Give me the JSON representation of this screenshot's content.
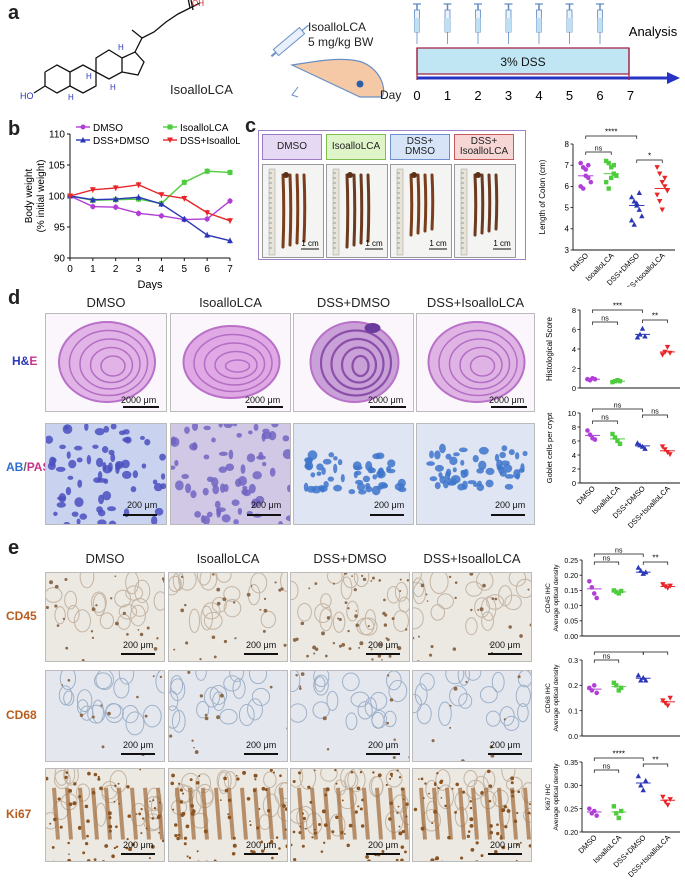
{
  "panels": {
    "a": "a",
    "b": "b",
    "c": "c",
    "d": "d",
    "e": "e"
  },
  "panel_a": {
    "compound": "IsoalloLCA",
    "dose_line1": "IsoalloLCA",
    "dose_line2": "5 mg/kg BW",
    "day_label": "Day",
    "dss_label": "3% DSS",
    "analysis": "Analysis",
    "days": [
      "0",
      "1",
      "2",
      "3",
      "4",
      "5",
      "6",
      "7"
    ],
    "chem_labels": {
      "oh": "OH",
      "o": "O",
      "ho": "HO",
      "h": "H"
    }
  },
  "legend_groups": [
    "DMSO",
    "IsoalloLCA",
    "DSS+DMSO",
    "DSS+IsoalloLCA"
  ],
  "colors": {
    "DMSO": "#b23ed8",
    "IsoalloLCA": "#4fcc3d",
    "DSS+DMSO": "#2b37b8",
    "DSS+IsoalloLCA": "#e8262a"
  },
  "chart_data": [
    {
      "type": "line",
      "id": "body-weight",
      "xlabel": "Days",
      "ylabel": "Body weight\n(% initial weight)",
      "ylabel_lines": [
        "Body weight",
        "(% initial weight)"
      ],
      "x": [
        0,
        1,
        2,
        3,
        4,
        5,
        6,
        7
      ],
      "xticks": [
        "0",
        "1",
        "2",
        "3",
        "4",
        "5",
        "6",
        "7"
      ],
      "yticks": [
        "90",
        "95",
        "100",
        "105",
        "110"
      ],
      "ylim": [
        90,
        110
      ],
      "legend_placement": "top",
      "series": [
        {
          "name": "DMSO",
          "values": [
            100,
            98.3,
            98.2,
            97.2,
            96.8,
            96.2,
            96.3,
            99.2
          ]
        },
        {
          "name": "IsoalloLCA",
          "values": [
            100,
            99.3,
            99.4,
            99.5,
            98.8,
            102.2,
            104,
            103.8
          ]
        },
        {
          "name": "DSS+DMSO",
          "values": [
            100,
            99.4,
            99.5,
            99.8,
            98.7,
            96.3,
            93.7,
            92.8
          ]
        },
        {
          "name": "DSS+IsoalloLCA",
          "values": [
            100,
            101,
            101.3,
            101.8,
            100.2,
            99.6,
            97.3,
            96
          ]
        }
      ]
    },
    {
      "type": "scatter",
      "id": "colon-length",
      "ylabel": "Length of Colon (cm)",
      "yticks": [
        "3",
        "4",
        "5",
        "6",
        "7",
        "8"
      ],
      "ylim": [
        3,
        8
      ],
      "categories": [
        "DMSO",
        "IsoalloLCA",
        "DSS+DMSO",
        "DSS+IsoalloLCA"
      ],
      "means": [
        6.5,
        6.6,
        5.1,
        5.9
      ],
      "points": [
        [
          7.1,
          6.9,
          6.5,
          6.4,
          6.2,
          6.0,
          5.9,
          6.8,
          7.0
        ],
        [
          7.2,
          7.1,
          6.9,
          6.6,
          6.5,
          6.2,
          5.9,
          6.4,
          7.0
        ],
        [
          5.5,
          5.3,
          5.1,
          4.9,
          4.6,
          4.4,
          4.2,
          5.2,
          5.7
        ],
        [
          6.9,
          6.6,
          6.2,
          6.0,
          5.8,
          5.6,
          5.3,
          4.9,
          6.4
        ]
      ],
      "sig": [
        {
          "a": 0,
          "b": 1,
          "text": "ns"
        },
        {
          "a": 0,
          "b": 2,
          "text": "****"
        },
        {
          "a": 2,
          "b": 3,
          "text": "*"
        }
      ]
    },
    {
      "type": "scatter",
      "id": "histological-score",
      "ylabel": "Histological Score",
      "yticks": [
        "0",
        "2",
        "4",
        "6",
        "8"
      ],
      "ylim": [
        0,
        8
      ],
      "categories": [
        "DMSO",
        "IsoalloLCA",
        "DSS+DMSO",
        "DSS+IsoalloLCA"
      ],
      "means": [
        0.9,
        0.7,
        5.5,
        3.7
      ],
      "points": [
        [
          0.9,
          0.8,
          1.0,
          0.9
        ],
        [
          0.6,
          0.7,
          0.8,
          0.7
        ],
        [
          5.2,
          5.5,
          6.1,
          5.3
        ],
        [
          3.4,
          3.7,
          4.2,
          3.6
        ]
      ],
      "sig": [
        {
          "a": 0,
          "b": 1,
          "text": "ns"
        },
        {
          "a": 0,
          "b": 2,
          "text": "***"
        },
        {
          "a": 2,
          "b": 3,
          "text": "**"
        }
      ]
    },
    {
      "type": "scatter",
      "id": "goblet-cells",
      "ylabel": "Goblet cells per crypt",
      "yticks": [
        "0",
        "2",
        "4",
        "6",
        "8",
        "10"
      ],
      "ylim": [
        0,
        10
      ],
      "categories": [
        "DMSO",
        "IsoalloLCA",
        "DSS+DMSO",
        "DSS+IsoalloLCA"
      ],
      "means": [
        6.8,
        6.3,
        5.3,
        4.6
      ],
      "points": [
        [
          7.5,
          6.9,
          6.4,
          6.2
        ],
        [
          7.0,
          6.5,
          6.0,
          5.6
        ],
        [
          5.7,
          5.4,
          5.2,
          4.9
        ],
        [
          5.2,
          4.8,
          4.4,
          4.1
        ]
      ],
      "sig": [
        {
          "a": 0,
          "b": 1,
          "text": "ns"
        },
        {
          "a": 0,
          "b": 2,
          "text": "ns"
        },
        {
          "a": 2,
          "b": 3,
          "text": "ns"
        }
      ]
    },
    {
      "type": "scatter",
      "id": "cd45-ihc",
      "ylabel": "CD45 IHC",
      "ylabel2": "Average optical density",
      "yticks": [
        "0.00",
        "0.05",
        "0.10",
        "0.15",
        "0.20",
        "0.25"
      ],
      "ylim": [
        0,
        0.25
      ],
      "categories": [
        "DMSO",
        "IsoalloLCA",
        "DSS+DMSO",
        "DSS+IsoalloLCA"
      ],
      "means": [
        0.155,
        0.145,
        0.21,
        0.163
      ],
      "points": [
        [
          0.18,
          0.16,
          0.14,
          0.125
        ],
        [
          0.15,
          0.145,
          0.14,
          0.148
        ],
        [
          0.225,
          0.215,
          0.205,
          0.21
        ],
        [
          0.17,
          0.163,
          0.158,
          0.165
        ]
      ],
      "sig": [
        {
          "a": 0,
          "b": 1,
          "text": "ns"
        },
        {
          "a": 0,
          "b": 2,
          "text": "ns"
        },
        {
          "a": 2,
          "b": 3,
          "text": "**"
        }
      ]
    },
    {
      "type": "scatter",
      "id": "cd68-ihc",
      "ylabel": "CD68 IHC",
      "ylabel2": "Average optical density",
      "yticks": [
        "0.0",
        "0.1",
        "0.2",
        "0.3"
      ],
      "ylim": [
        0,
        0.3
      ],
      "categories": [
        "DMSO",
        "IsoalloLCA",
        "DSS+DMSO",
        "DSS+IsoalloLCA"
      ],
      "means": [
        0.185,
        0.195,
        0.228,
        0.135
      ],
      "points": [
        [
          0.19,
          0.18,
          0.2,
          0.17
        ],
        [
          0.21,
          0.2,
          0.18,
          0.19
        ],
        [
          0.24,
          0.22,
          0.23,
          0.22
        ],
        [
          0.14,
          0.13,
          0.12,
          0.15
        ]
      ],
      "sig": [
        {
          "a": 0,
          "b": 1,
          "text": "ns"
        },
        {
          "a": 0,
          "b": 2,
          "text": "**"
        },
        {
          "a": 2,
          "b": 3,
          "text": "****"
        }
      ]
    },
    {
      "type": "scatter",
      "id": "ki67-ihc",
      "ylabel": "Ki67 IHC",
      "ylabel2": "Average optical density",
      "yticks": [
        "0.20",
        "0.25",
        "0.30",
        "0.35"
      ],
      "ylim": [
        0.2,
        0.35
      ],
      "categories": [
        "DMSO",
        "IsoalloLCA",
        "DSS+DMSO",
        "DSS+IsoalloLCA"
      ],
      "means": [
        0.243,
        0.243,
        0.305,
        0.268
      ],
      "points": [
        [
          0.25,
          0.24,
          0.245,
          0.235
        ],
        [
          0.255,
          0.24,
          0.23,
          0.245
        ],
        [
          0.32,
          0.3,
          0.29,
          0.31
        ],
        [
          0.275,
          0.265,
          0.258,
          0.27
        ]
      ],
      "sig": [
        {
          "a": 0,
          "b": 1,
          "text": "ns"
        },
        {
          "a": 0,
          "b": 2,
          "text": "****"
        },
        {
          "a": 2,
          "b": 3,
          "text": "**"
        }
      ]
    }
  ],
  "panel_c": {
    "groups": [
      "DMSO",
      "IsoalloLCA",
      "DSS+\nDMSO",
      "DSS+\nIsoalloLCA"
    ],
    "scale": "1 cm"
  },
  "panel_d": {
    "columns": [
      "DMSO",
      "IsoalloLCA",
      "DSS+DMSO",
      "DSS+IsoalloLCA"
    ],
    "stain_he": [
      "H",
      "&",
      "E"
    ],
    "stain_abpas": [
      "AB",
      "/",
      "PAS"
    ],
    "scale_top": "2000 μm",
    "scale_bottom": "200 μm"
  },
  "panel_e": {
    "columns": [
      "DMSO",
      "IsoalloLCA",
      "DSS+DMSO",
      "DSS+IsoalloLCA"
    ],
    "rows": [
      "CD45",
      "CD68",
      "Ki67"
    ],
    "scale": "200 μm"
  }
}
